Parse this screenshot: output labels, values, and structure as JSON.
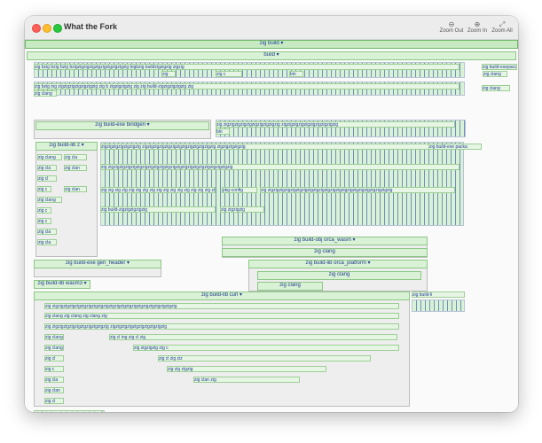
{
  "window": {
    "title": "What the Fork",
    "toolbar": {
      "zoom_out": "Zoom Out",
      "zoom_in": "Zoom In",
      "zoom_all": "Zoom All"
    }
  },
  "labels": {
    "zig_build": "zig build ▾",
    "build": "build ▾",
    "build_exe_bindgen": "zig build-exe bindgen ▾",
    "build_lib_z": "zig build-lib z ▾",
    "build_obj_orca_wasm": "zig build-obj orca_wasm ▾",
    "build_lib_orca_platform": "zig build-lib orca_platform ▾",
    "build_exe_gen_header": "zig build-exe gen_header ▾",
    "build_lib_wasm3": "zig build-lib wasm3 ▾",
    "build_lib_curl": "zig build-lib curl ▾",
    "build_exe_expecc": "zig build-exepacc",
    "build_exe_packa": "zig build-exe packa",
    "build_lib_e": "zig build-li",
    "pkg_config": "pkg-config",
    "zig_clang": "zig clang",
    "zig_clan": "zig clan",
    "zig_cla": "zig cla",
    "zig_c": "zig c",
    "zig_cl": "zig cl",
    "zig_build_gen": "zig build-gen",
    "zig_build_exe_ing": "zig build-ing",
    "zig_build_zig": "zig build-zigzigzigzigzig",
    "zig_build_obj": "zig build-obj",
    "zig_build_ing": "zig build-ing",
    "zig_build_c": "zig build-cl",
    "zig_build_cu": "zig build-zigzigzig",
    "zig_build_zigzig": "zig buildzigzig",
    "zig_build_wide": "zig build-zigzigzigzigzig",
    "zig_bzig": "zig bzig",
    "zig_zigzig": "zig zigzigzig",
    "zig_zigzigzig": "zig zig zig",
    "zig_zig_wide": "zig zigzigzigzigzigzigzigzigzigzigzigzigzigzigzigzigzigzigzigzigzigzig",
    "zig_zig_wide2": "zig zigzigzigzigzigzigzigzigzigzig zigzigzigzigzigzigzigzigzigzig",
    "zig_zig_wide3": "zigzigzigzigzigzigzig zigzigzigzigzigzigzigzigzigzigzigzigzig zigzigzigzigzig",
    "zig_zig_wide4": "zig zig zig zig zig zig zig zig zig zig zig zig zig zig zig zig zig",
    "zig_zigzig_bigbuild": "zig bzig bzig bzig bzigzigzigzigzigzigzigzigzigzig bigbzig buildzigzigzig zigzig",
    "zig_zigzig_line2": "zig bzig ing zigzigzigzigzigzigzig zig b zigzigzigzig zig zig build-zigzigzigzigzig zig",
    "zig_clan_zig": "zig clangzig",
    "zig_zig_i": "zig zigzig ing",
    "zig_zig_clang": "zig zig clang zig",
    "zig_ing_ing": "zig ing zig ing zig",
    "zigzig": "zigzig",
    "zig": "zig",
    "zig_i": "zig i",
    "bin": "bin",
    "zig_s": "zig s",
    "zig_z": "zig z",
    "zig_ziz": "zig ziz",
    "zig_clang_wide": "zig clang zig clang zig clang zig",
    "zig_cl_ing": "zig cl ing zig cl zig",
    "zig_zigzig_c": "zig zigzigzig zig c",
    "zig_cl2": "zig cl zig ziz",
    "zig_build_zigzigzig": "zig build-zigzigzig zig",
    "zig_zig2": "zig zig zigzig",
    "zig_clangzig": "zig clangzig",
    "zig_clan_zig2": "zig clan zig",
    "zig_cla_zig": "zig cla zig",
    "zig_zig3": "zig zig",
    "zig_zig_zig": "zig zig zig"
  }
}
